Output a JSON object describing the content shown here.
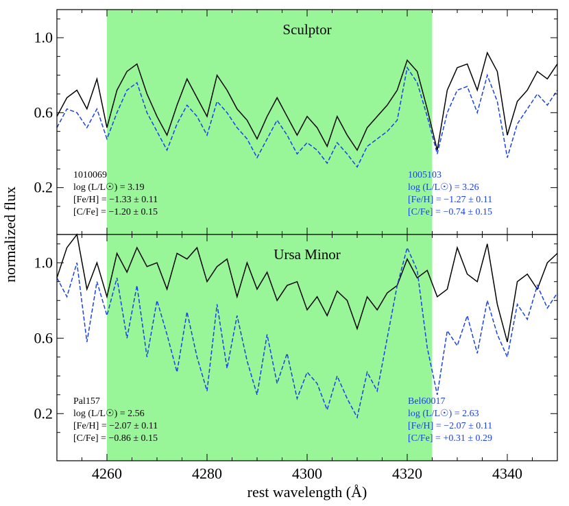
{
  "chart_data": {
    "type": "line",
    "xlabel": "rest wavelength (Å)",
    "ylabel": "normalized flux",
    "xlim": [
      4250,
      4350
    ],
    "xticks": [
      4260,
      4280,
      4300,
      4320,
      4340
    ],
    "x_tick_labels": [
      "4260",
      "4280",
      "4300",
      "4320",
      "4340"
    ],
    "highlight_band": {
      "x": [
        4260,
        4325
      ],
      "color": "#98f598"
    },
    "panels": [
      {
        "title": "Sculptor",
        "ylim": [
          -0.05,
          1.15
        ],
        "yticks": [
          0.2,
          0.6,
          1.0
        ],
        "y_tick_labels": [
          "0.2",
          "0.6",
          "1.0"
        ],
        "series": [
          {
            "color": "#000000",
            "dash": "solid",
            "x": [
              4250,
              4252,
              4254,
              4256,
              4258,
              4260,
              4262,
              4264,
              4266,
              4268,
              4270,
              4272,
              4274,
              4276,
              4278,
              4280,
              4282,
              4284,
              4286,
              4288,
              4290,
              4292,
              4294,
              4296,
              4298,
              4300,
              4302,
              4304,
              4306,
              4308,
              4310,
              4312,
              4314,
              4316,
              4318,
              4320,
              4322,
              4324,
              4326,
              4328,
              4330,
              4332,
              4334,
              4336,
              4338,
              4340,
              4342,
              4344,
              4346,
              4348,
              4350
            ],
            "values": [
              0.58,
              0.68,
              0.72,
              0.62,
              0.78,
              0.52,
              0.72,
              0.82,
              0.86,
              0.7,
              0.58,
              0.48,
              0.64,
              0.78,
              0.68,
              0.58,
              0.8,
              0.72,
              0.62,
              0.56,
              0.46,
              0.58,
              0.68,
              0.58,
              0.48,
              0.58,
              0.52,
              0.42,
              0.58,
              0.48,
              0.4,
              0.52,
              0.58,
              0.64,
              0.72,
              0.88,
              0.82,
              0.62,
              0.4,
              0.72,
              0.84,
              0.86,
              0.72,
              0.92,
              0.82,
              0.48,
              0.66,
              0.72,
              0.82,
              0.78,
              0.86
            ]
          },
          {
            "color": "#1a3fe8",
            "dash": "dashed",
            "x": [
              4250,
              4252,
              4254,
              4256,
              4258,
              4260,
              4262,
              4264,
              4266,
              4268,
              4270,
              4272,
              4274,
              4276,
              4278,
              4280,
              4282,
              4284,
              4286,
              4288,
              4290,
              4292,
              4294,
              4296,
              4298,
              4300,
              4302,
              4304,
              4306,
              4308,
              4310,
              4312,
              4314,
              4316,
              4318,
              4320,
              4322,
              4324,
              4326,
              4328,
              4330,
              4332,
              4334,
              4336,
              4338,
              4340,
              4342,
              4344,
              4346,
              4348,
              4350
            ],
            "values": [
              0.52,
              0.62,
              0.6,
              0.52,
              0.62,
              0.46,
              0.6,
              0.72,
              0.76,
              0.6,
              0.5,
              0.4,
              0.54,
              0.64,
              0.58,
              0.48,
              0.66,
              0.6,
              0.52,
              0.46,
              0.36,
              0.46,
              0.56,
              0.48,
              0.38,
              0.44,
              0.4,
              0.33,
              0.44,
              0.38,
              0.31,
              0.42,
              0.46,
              0.5,
              0.56,
              0.84,
              0.76,
              0.58,
              0.38,
              0.6,
              0.72,
              0.74,
              0.6,
              0.8,
              0.66,
              0.36,
              0.54,
              0.62,
              0.7,
              0.64,
              0.72
            ]
          }
        ],
        "annotations": [
          {
            "side": "left",
            "color": "#000000",
            "lines": [
              "1010069",
              "log (L/L☉) = 3.19",
              "[Fe/H] = −1.33 ± 0.11",
              "[C/Fe] = −1.20 ± 0.15"
            ]
          },
          {
            "side": "right",
            "color": "#1a3fe8",
            "lines": [
              "1005103",
              "log (L/L☉) = 3.26",
              "[Fe/H] = −1.27 ± 0.11",
              "[C/Fe] = −0.74 ± 0.15"
            ]
          }
        ]
      },
      {
        "title": "Ursa Minor",
        "ylim": [
          -0.05,
          1.15
        ],
        "yticks": [
          0.2,
          0.6,
          1.0
        ],
        "y_tick_labels": [
          "0.2",
          "0.6",
          "1.0"
        ],
        "series": [
          {
            "color": "#000000",
            "dash": "solid",
            "x": [
              4250,
              4252,
              4254,
              4256,
              4258,
              4260,
              4262,
              4264,
              4266,
              4268,
              4270,
              4272,
              4274,
              4276,
              4278,
              4280,
              4282,
              4284,
              4286,
              4288,
              4290,
              4292,
              4294,
              4296,
              4298,
              4300,
              4302,
              4304,
              4306,
              4308,
              4310,
              4312,
              4314,
              4316,
              4318,
              4320,
              4322,
              4324,
              4326,
              4328,
              4330,
              4332,
              4334,
              4336,
              4338,
              4340,
              4342,
              4344,
              4346,
              4348,
              4350
            ],
            "values": [
              0.92,
              1.08,
              1.15,
              0.86,
              1.0,
              0.82,
              1.05,
              0.95,
              1.08,
              0.98,
              1.0,
              0.86,
              1.05,
              1.02,
              1.08,
              0.9,
              0.98,
              1.02,
              0.82,
              1.0,
              0.86,
              0.95,
              0.8,
              0.88,
              0.9,
              0.75,
              0.82,
              0.72,
              0.85,
              0.8,
              0.65,
              0.82,
              0.75,
              0.84,
              0.88,
              1.02,
              0.92,
              0.96,
              0.82,
              0.86,
              1.08,
              0.94,
              0.9,
              1.1,
              0.78,
              0.58,
              0.9,
              0.94,
              0.86,
              1.0,
              1.05
            ]
          },
          {
            "color": "#1a3fe8",
            "dash": "dashed",
            "x": [
              4250,
              4252,
              4254,
              4256,
              4258,
              4260,
              4262,
              4264,
              4266,
              4268,
              4270,
              4272,
              4274,
              4276,
              4278,
              4280,
              4282,
              4284,
              4286,
              4288,
              4290,
              4292,
              4294,
              4296,
              4298,
              4300,
              4302,
              4304,
              4306,
              4308,
              4310,
              4312,
              4314,
              4316,
              4318,
              4320,
              4322,
              4324,
              4326,
              4328,
              4330,
              4332,
              4334,
              4336,
              4338,
              4340,
              4342,
              4344,
              4346,
              4348,
              4350
            ],
            "values": [
              0.92,
              0.82,
              1.0,
              0.58,
              0.9,
              0.72,
              0.92,
              0.6,
              0.88,
              0.5,
              0.8,
              0.62,
              0.42,
              0.74,
              0.5,
              0.32,
              0.78,
              0.44,
              0.72,
              0.48,
              0.3,
              0.62,
              0.36,
              0.52,
              0.28,
              0.42,
              0.36,
              0.22,
              0.4,
              0.28,
              0.18,
              0.42,
              0.32,
              0.6,
              0.88,
              1.08,
              0.96,
              0.55,
              0.3,
              0.64,
              0.56,
              0.72,
              0.52,
              0.8,
              0.62,
              0.5,
              0.78,
              0.7,
              0.88,
              0.76,
              0.84
            ]
          }
        ],
        "annotations": [
          {
            "side": "left",
            "color": "#000000",
            "lines": [
              "Pal157",
              "log (L/L☉) = 2.56",
              "[Fe/H] = −2.07 ± 0.11",
              "[C/Fe] = −0.86 ± 0.15"
            ]
          },
          {
            "side": "right",
            "color": "#1a3fe8",
            "lines": [
              "Bel60017",
              "log (L/L☉) = 2.63",
              "[Fe/H] = −2.07 ± 0.11",
              "[C/Fe] = +0.31 ± 0.29"
            ]
          }
        ]
      }
    ]
  }
}
